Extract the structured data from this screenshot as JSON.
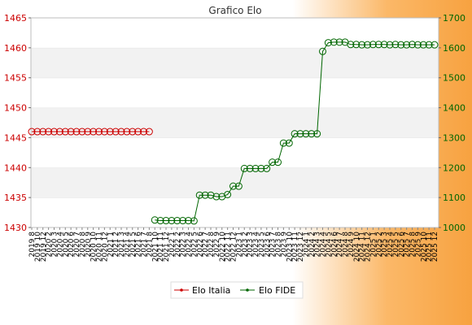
{
  "chart_data": {
    "type": "line",
    "title": "Grafico Elo",
    "categories": [
      "2019 8",
      "2019 10",
      "2019 12",
      "2020 2",
      "2020 3",
      "2020 4",
      "2020 5",
      "2020 6",
      "2020 7",
      "2020 8",
      "2020 9",
      "2020 10",
      "2020 11",
      "2020 12",
      "2021 1",
      "2021 2",
      "2021 3",
      "2021 4",
      "2021 5",
      "2021 6",
      "2021 7",
      "2021 8",
      "2021 10",
      "2021 11",
      "2021 12",
      "2022 1",
      "2022 2",
      "2022 3",
      "2022 4",
      "2022 5",
      "2022 6",
      "2022 7",
      "2022 8",
      "2022 9",
      "2022 10",
      "2022 11",
      "2022 12",
      "2023 1",
      "2023 2",
      "2023 3",
      "2023 4",
      "2023 5",
      "2023 6",
      "2023 7",
      "2023 8",
      "2023 9",
      "2023 10",
      "2023 11",
      "2023 12",
      "2024 1",
      "2024 2",
      "2024 3",
      "2024 4",
      "2024 5",
      "2024 6",
      "2024 7",
      "2024 8",
      "2024 9",
      "2024 10",
      "2024 11",
      "2024 12",
      "2025 1",
      "2025 2",
      "2025 3",
      "2025 4",
      "2025 5",
      "2025 6",
      "2025 7",
      "2025 8",
      "2025 9",
      "2025 10",
      "2025 11",
      "2025 12"
    ],
    "series": [
      {
        "name": "Elo Italia",
        "axis": "left",
        "color": "#cc0000",
        "values": [
          1446,
          1446,
          1446,
          1446,
          1446,
          1446,
          1446,
          1446,
          1446,
          1446,
          1446,
          1446,
          1446,
          1446,
          1446,
          1446,
          1446,
          1446,
          1446,
          1446,
          1446,
          1446,
          null,
          null,
          null,
          null,
          null,
          null,
          null,
          null,
          null,
          null,
          null,
          null,
          null,
          null,
          null,
          null,
          null,
          null,
          null,
          null,
          null,
          null,
          null,
          null,
          null,
          null,
          null,
          null,
          null,
          null,
          null,
          null,
          null,
          null,
          null,
          null,
          null,
          null,
          null,
          null,
          null,
          null,
          null,
          null,
          null,
          null,
          null,
          null,
          null,
          null,
          null
        ]
      },
      {
        "name": "Elo FIDE",
        "axis": "right",
        "color": "#006600",
        "values": [
          null,
          null,
          null,
          null,
          null,
          null,
          null,
          null,
          null,
          null,
          null,
          null,
          null,
          null,
          null,
          null,
          null,
          null,
          null,
          null,
          null,
          null,
          1025,
          1023,
          1023,
          1023,
          1023,
          1023,
          1023,
          1022,
          1108,
          1108,
          1108,
          1103,
          1103,
          1110,
          1138,
          1138,
          1197,
          1197,
          1197,
          1197,
          1197,
          1218,
          1218,
          1282,
          1282,
          1313,
          1313,
          1313,
          1313,
          1313,
          1588,
          1617,
          1619,
          1619,
          1619,
          1611,
          1611,
          1610,
          1610,
          1611,
          1611,
          1611,
          1610,
          1611,
          1610,
          1610,
          1611,
          1610,
          1610,
          1610,
          1610
        ]
      }
    ],
    "y_left": {
      "range": [
        1430,
        1465
      ],
      "ticks": [
        1430,
        1435,
        1440,
        1445,
        1450,
        1455,
        1460,
        1465
      ]
    },
    "y_right": {
      "range": [
        1000,
        1700
      ],
      "ticks": [
        1000,
        1100,
        1200,
        1300,
        1400,
        1500,
        1600,
        1700
      ]
    },
    "grid": true,
    "legend_position": "bottom"
  },
  "colors": {
    "left_axis": "#cc0000",
    "right_axis": "#006600",
    "plot_band": "#f2f2f2",
    "plot_bg": "#ffffff",
    "gradient_end": "#f7a240"
  }
}
